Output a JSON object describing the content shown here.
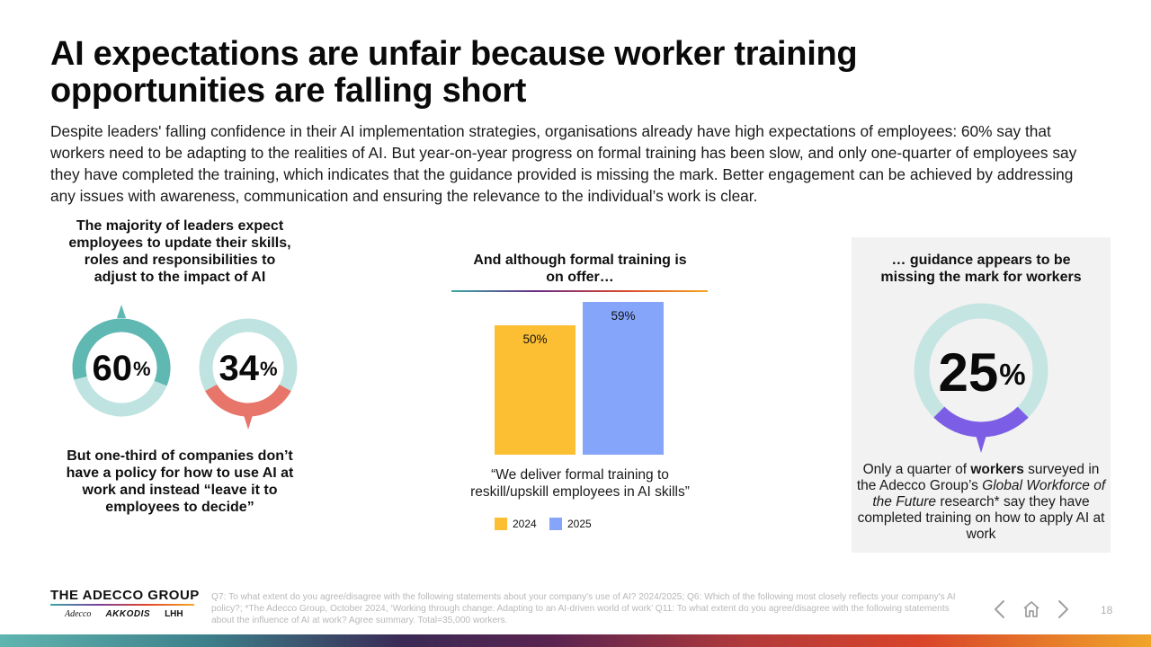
{
  "title": "AI expectations are unfair because worker training opportunities are falling short",
  "intro": "Despite leaders' falling confidence in their AI implementation strategies, organisations already have high expectations of employees: 60% say that workers need to be adapting to the realities of AI. But year-on-year progress on formal training has been slow, and only one-quarter of employees say they have completed the training, which indicates that the guidance provided is missing the mark. Better engagement can be achieved by addressing any issues with awareness, communication and ensuring the relevance to the individual’s work is clear.",
  "left": {
    "heading": "The majority of leaders expect employees to update their skills, roles and responsibilities to adjust to the impact of AI",
    "donut1": {
      "value": "60",
      "unit": "%",
      "fraction": 0.6,
      "color": "#5fb8b2",
      "track": "#bfe3e0"
    },
    "donut2": {
      "value": "34",
      "unit": "%",
      "fraction": 0.34,
      "color": "#e8756a",
      "track": "#bfe3e0"
    },
    "footer": "But one-third of companies don’t have a policy for how to use AI at work and instead “leave it to employees to decide”"
  },
  "middle": {
    "heading": "And although formal training is on offer…",
    "quote": "“We deliver formal training to reskill/upskill employees in AI skills”",
    "chart_data": {
      "type": "bar",
      "categories": [
        "2024",
        "2025"
      ],
      "values": [
        50,
        59
      ],
      "labels": [
        "50%",
        "59%"
      ],
      "colors": [
        "#fcbf33",
        "#85a5fb"
      ],
      "title": "And although formal training is on offer…",
      "xlabel": "",
      "ylabel": "",
      "ylim": [
        0,
        70
      ]
    },
    "legend": [
      {
        "label": "2024",
        "color": "#fcbf33"
      },
      {
        "label": "2025",
        "color": "#85a5fb"
      }
    ]
  },
  "right": {
    "heading": "… guidance appears to be missing the mark for workers",
    "donut": {
      "value": "25",
      "unit": "%",
      "fraction": 0.25,
      "color": "#7c5ee6",
      "track": "#c5e5e2"
    },
    "text_1": "Only a quarter of ",
    "text_bold": "workers",
    "text_2": " surveyed in the Adecco Group’s ",
    "text_italic": "Global Workforce of the Future",
    "text_3": " research* say they have completed training on how to apply AI at work"
  },
  "footer": {
    "brand": "THE ADECCO GROUP",
    "sub_brands": [
      "Adecco",
      "AKKODIS",
      "LHH"
    ],
    "footnote": "Q7: To what extent do you agree/disagree with the following statements about your company's use of AI? 2024/2025; Q6: Which of the following most closely reflects your company's AI policy?; *The Adecco Group, October 2024, ‘Working through change: Adapting to an AI-driven world of work’ Q11: To what extent do you agree/disagree with the following statements about the influence of AI at work? Agree summary. Total=35,000 workers.",
    "page_number": "18"
  }
}
